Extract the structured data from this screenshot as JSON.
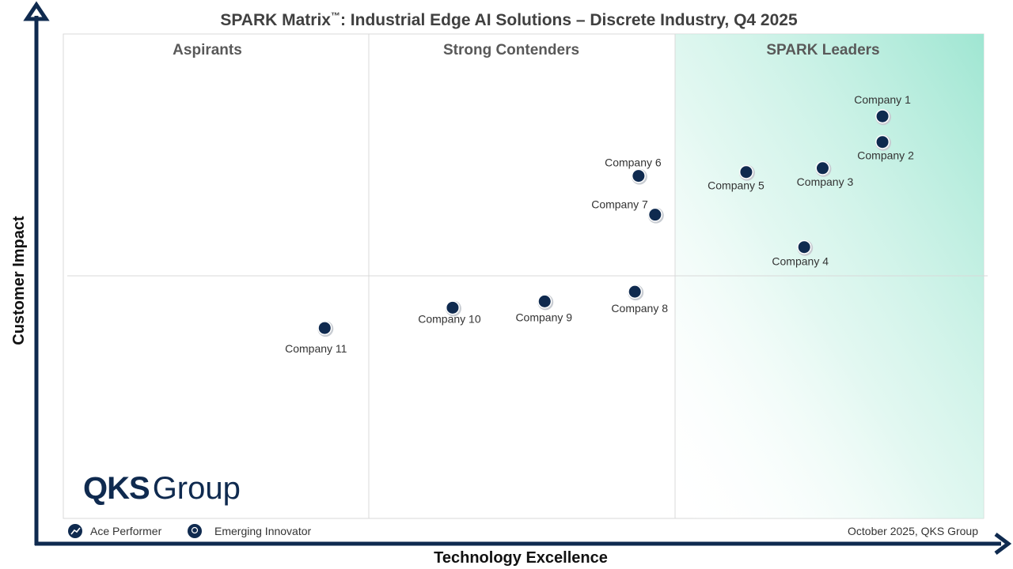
{
  "title": "SPARK Matrix",
  "title_tm": "™",
  "title_rest": ": Industrial Edge AI Solutions – Discrete Industry, Q4 2025",
  "quadrants": {
    "aspirants": "Aspirants",
    "strong_contenders": "Strong Contenders",
    "leaders": "SPARK Leaders"
  },
  "axis": {
    "x_label": "Technology Excellence",
    "y_label": "Customer Impact"
  },
  "logo": {
    "text_bold": "QKS",
    "text_light": "Group"
  },
  "legend": {
    "ace_performer": "Ace Performer",
    "emerging_innovator": "Emerging Innovator",
    "ace_icon": "trend-up-icon",
    "innovator_icon": "lightbulb-icon"
  },
  "footer_source": "October 2025, QKS Group",
  "colors": {
    "navy": "#0f2a4f",
    "leader_gradient": "#9fe6d2",
    "grid": "#d9d9d9",
    "quadrant_text": "#595959"
  },
  "chart_data": {
    "type": "scatter",
    "title": "SPARK Matrix™: Industrial Edge AI Solutions – Discrete Industry, Q4 2025",
    "xlabel": "Technology Excellence",
    "ylabel": "Customer Impact",
    "points": [
      {
        "label": "Company 1",
        "x": 89.0,
        "y": 83.0
      },
      {
        "label": "Company 2",
        "x": 89.0,
        "y": 77.7
      },
      {
        "label": "Company 3",
        "x": 82.5,
        "y": 72.3
      },
      {
        "label": "Company 4",
        "x": 80.5,
        "y": 56.0
      },
      {
        "label": "Company 5",
        "x": 74.2,
        "y": 71.5
      },
      {
        "label": "Company 6",
        "x": 62.5,
        "y": 70.7
      },
      {
        "label": "Company  7",
        "x": 64.3,
        "y": 62.7
      },
      {
        "label": "Company 8",
        "x": 62.1,
        "y": 46.8
      },
      {
        "label": "Company 9",
        "x": 52.3,
        "y": 44.8
      },
      {
        "label": "Company 10",
        "x": 42.3,
        "y": 43.5
      },
      {
        "label": "Company 11",
        "x": 28.4,
        "y": 39.3
      }
    ]
  }
}
